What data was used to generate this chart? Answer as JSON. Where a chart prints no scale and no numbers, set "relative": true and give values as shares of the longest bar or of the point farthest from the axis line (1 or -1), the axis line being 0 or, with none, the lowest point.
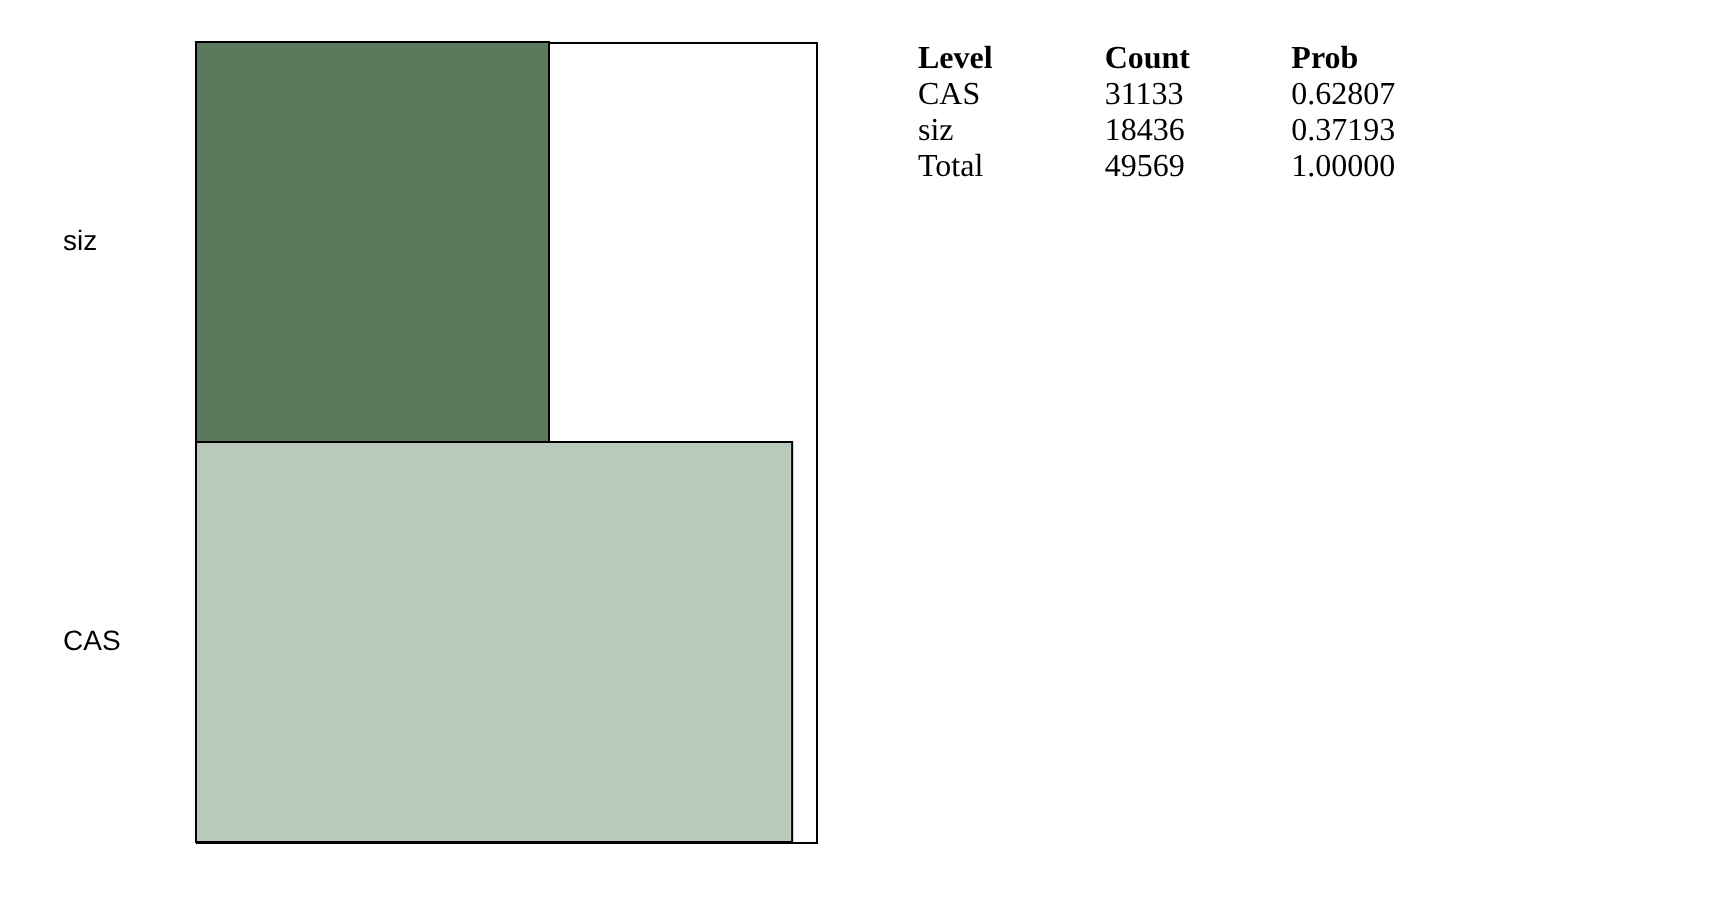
{
  "chart_data": {
    "type": "bar",
    "orientation": "horizontal",
    "relative": true,
    "categories": [
      "siz",
      "CAS"
    ],
    "values": [
      0.5922,
      1
    ],
    "colors": [
      "#5b7a5c",
      "#b9cabc"
    ],
    "tick_labels": "y",
    "annotations": [
      "Level",
      "Count",
      "Prob",
      "CAS",
      "31133",
      "0.62807",
      "siz",
      "18436",
      "0.37193",
      "Total",
      "49569",
      "1.00000"
    ]
  }
}
